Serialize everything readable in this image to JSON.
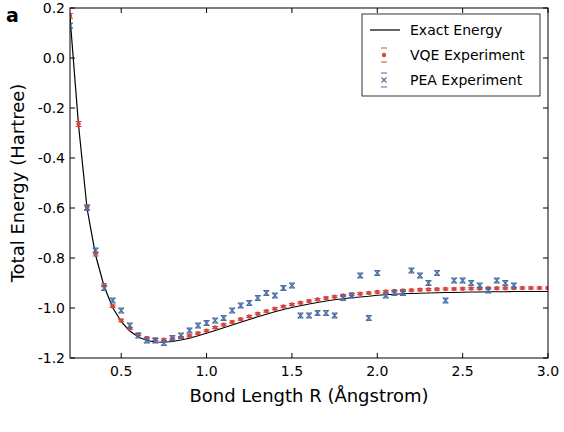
{
  "chart_data": {
    "type": "scatter",
    "annotations": [
      "a"
    ],
    "x_label": "Bond Length R (Ångstrom)",
    "y_label": "Total Energy (Hartree)",
    "xlim": [
      0.2,
      3.0
    ],
    "ylim": [
      -1.2,
      0.2
    ],
    "xticks": [
      0.5,
      {
        "value": 1,
        "label": "1.0"
      },
      1.5,
      {
        "value": 2,
        "label": "2.0"
      },
      2.5,
      {
        "value": 3,
        "label": "3.0"
      }
    ],
    "yticks": [
      -1.2,
      {
        "value": -1,
        "label": "-1.0"
      },
      -0.8,
      -0.6,
      -0.4,
      -0.2,
      {
        "value": 0,
        "label": "0.0"
      },
      0.2
    ],
    "grid": false,
    "legend": "upper right",
    "series": [
      {
        "name": "Exact Energy",
        "type": "line",
        "color": "#000000",
        "line_style": "solid",
        "x": [
          0.2,
          0.25,
          0.3,
          0.35,
          0.4,
          0.45,
          0.5,
          0.55,
          0.6,
          0.65,
          0.7,
          0.75,
          0.8,
          0.85,
          0.9,
          0.95,
          1.0,
          1.05,
          1.1,
          1.15,
          1.2,
          1.25,
          1.3,
          1.35,
          1.4,
          1.45,
          1.5,
          1.55,
          1.6,
          1.65,
          1.7,
          1.75,
          1.8,
          1.85,
          1.9,
          1.95,
          2.0,
          2.05,
          2.1,
          2.15,
          2.2,
          2.25,
          2.3,
          2.35,
          2.4,
          2.45,
          2.5,
          2.55,
          2.6,
          2.65,
          2.7,
          2.75,
          2.8,
          2.85,
          2.9,
          2.95,
          3.0
        ],
        "values": [
          0.164,
          -0.269,
          -0.602,
          -0.789,
          -0.914,
          -0.998,
          -1.055,
          -1.092,
          -1.116,
          -1.13,
          -1.136,
          -1.137,
          -1.134,
          -1.128,
          -1.121,
          -1.111,
          -1.101,
          -1.09,
          -1.079,
          -1.068,
          -1.057,
          -1.046,
          -1.035,
          -1.025,
          -1.015,
          -1.006,
          -0.998,
          -0.991,
          -0.984,
          -0.978,
          -0.972,
          -0.967,
          -0.963,
          -0.959,
          -0.956,
          -0.953,
          -0.949,
          -0.947,
          -0.945,
          -0.943,
          -0.942,
          -0.941,
          -0.94,
          -0.939,
          -0.938,
          -0.938,
          -0.937,
          -0.936,
          -0.936,
          -0.935,
          -0.935,
          -0.935,
          -0.934,
          -0.934,
          -0.934,
          -0.934,
          -0.934
        ]
      },
      {
        "name": "VQE Experiment",
        "type": "scatter",
        "color": "#d9453d",
        "marker": "circle",
        "x": [
          0.2,
          0.25,
          0.3,
          0.35,
          0.4,
          0.45,
          0.5,
          0.55,
          0.6,
          0.65,
          0.7,
          0.75,
          0.8,
          0.85,
          0.9,
          0.95,
          1.0,
          1.05,
          1.1,
          1.15,
          1.2,
          1.25,
          1.3,
          1.35,
          1.4,
          1.45,
          1.5,
          1.55,
          1.6,
          1.65,
          1.7,
          1.75,
          1.8,
          1.85,
          1.9,
          1.95,
          2.0,
          2.05,
          2.1,
          2.15,
          2.2,
          2.25,
          2.3,
          2.35,
          2.4,
          2.45,
          2.5,
          2.55,
          2.6,
          2.65,
          2.7,
          2.75,
          2.8,
          2.85,
          2.9,
          2.95,
          3.0
        ],
        "values": [
          0.168,
          -0.264,
          -0.597,
          -0.784,
          -0.909,
          -0.993,
          -1.05,
          -1.082,
          -1.106,
          -1.12,
          -1.126,
          -1.127,
          -1.124,
          -1.118,
          -1.111,
          -1.101,
          -1.091,
          -1.078,
          -1.067,
          -1.056,
          -1.045,
          -1.034,
          -1.023,
          -1.013,
          -1.003,
          -0.994,
          -0.986,
          -0.979,
          -0.972,
          -0.966,
          -0.96,
          -0.955,
          -0.95,
          -0.946,
          -0.943,
          -0.94,
          -0.936,
          -0.934,
          -0.932,
          -0.93,
          -0.929,
          -0.927,
          -0.926,
          -0.925,
          -0.924,
          -0.924,
          -0.923,
          -0.922,
          -0.922,
          -0.921,
          -0.921,
          -0.921,
          -0.92,
          -0.92,
          -0.92,
          -0.92,
          -0.92
        ],
        "errors": [
          0.01,
          0.01,
          0.01,
          0.008,
          0.006,
          0.005,
          0.005,
          0.004,
          0.004,
          0.004,
          0.004,
          0.004,
          0.004,
          0.004,
          0.004,
          0.004,
          0.004,
          0.004,
          0.004,
          0.004,
          0.004,
          0.004,
          0.004,
          0.004,
          0.004,
          0.004,
          0.004,
          0.004,
          0.004,
          0.004,
          0.004,
          0.004,
          0.004,
          0.004,
          0.004,
          0.004,
          0.004,
          0.004,
          0.004,
          0.004,
          0.004,
          0.004,
          0.004,
          0.004,
          0.004,
          0.004,
          0.004,
          0.004,
          0.004,
          0.004,
          0.004,
          0.004,
          0.004,
          0.004,
          0.004,
          0.004,
          0.004
        ]
      },
      {
        "name": "PEA Experiment",
        "type": "scatter",
        "color": "#4a6fa5",
        "marker": "x",
        "x": [
          0.2,
          0.3,
          0.35,
          0.4,
          0.45,
          0.5,
          0.55,
          0.6,
          0.65,
          0.7,
          0.75,
          0.8,
          0.85,
          0.9,
          0.95,
          1.0,
          1.05,
          1.1,
          1.15,
          1.2,
          1.25,
          1.3,
          1.35,
          1.4,
          1.45,
          1.5,
          1.55,
          1.6,
          1.65,
          1.7,
          1.75,
          1.8,
          1.85,
          1.9,
          1.95,
          2.0,
          2.05,
          2.1,
          2.15,
          2.2,
          2.25,
          2.3,
          2.35,
          2.4,
          2.45,
          2.5,
          2.55,
          2.6,
          2.65,
          2.7,
          2.75,
          2.8
        ],
        "values": [
          0.13,
          -0.6,
          -0.77,
          -0.92,
          -0.97,
          -1.01,
          -1.07,
          -1.11,
          -1.13,
          -1.13,
          -1.14,
          -1.12,
          -1.11,
          -1.09,
          -1.07,
          -1.06,
          -1.05,
          -1.04,
          -1.01,
          -0.99,
          -0.98,
          -0.96,
          -0.94,
          -0.95,
          -0.92,
          -0.91,
          -1.03,
          -1.03,
          -1.02,
          -1.02,
          -1.03,
          -0.96,
          -0.95,
          -0.87,
          -1.04,
          -0.86,
          -0.95,
          -0.94,
          -0.94,
          -0.85,
          -0.87,
          -0.9,
          -0.86,
          -0.97,
          -0.89,
          -0.89,
          -0.9,
          -0.91,
          -0.93,
          -0.89,
          -0.9,
          -0.91
        ],
        "errors": [
          0.01,
          0.01,
          0.01,
          0.01,
          0.01,
          0.01,
          0.01,
          0.01,
          0.01,
          0.01,
          0.01,
          0.01,
          0.01,
          0.01,
          0.01,
          0.01,
          0.01,
          0.01,
          0.01,
          0.01,
          0.01,
          0.01,
          0.01,
          0.01,
          0.01,
          0.01,
          0.01,
          0.01,
          0.01,
          0.01,
          0.01,
          0.01,
          0.01,
          0.01,
          0.01,
          0.01,
          0.01,
          0.01,
          0.01,
          0.01,
          0.01,
          0.01,
          0.01,
          0.01,
          0.01,
          0.01,
          0.01,
          0.01,
          0.01,
          0.01,
          0.01,
          0.01
        ]
      }
    ]
  }
}
